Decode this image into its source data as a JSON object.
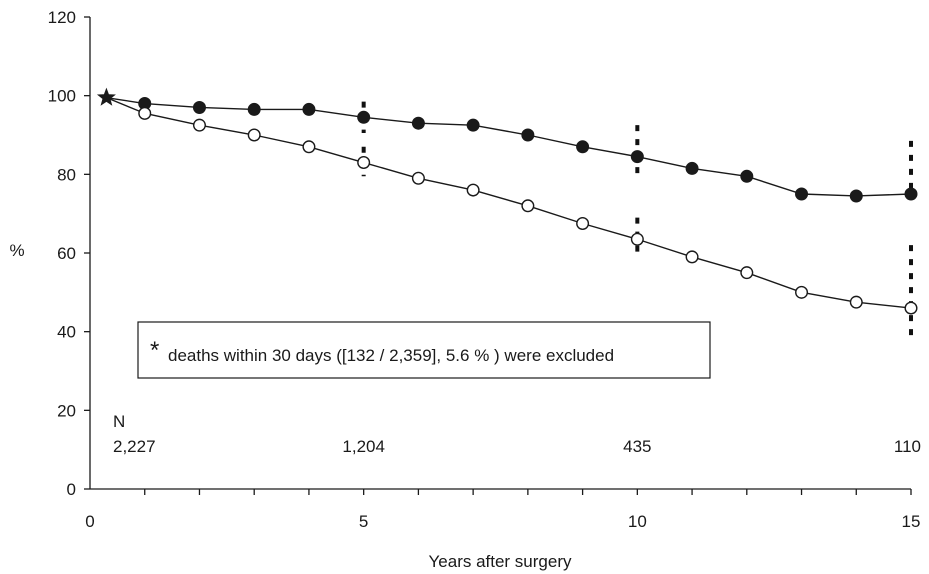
{
  "chart_data": {
    "type": "line",
    "title": "",
    "xlabel": "Years after surgery",
    "ylabel": "%",
    "xlim": [
      0,
      15
    ],
    "ylim": [
      0,
      120
    ],
    "x_ticks": [
      "0",
      "5",
      "10",
      "15"
    ],
    "y_ticks": [
      "0",
      "20",
      "40",
      "60",
      "80",
      "100",
      "120"
    ],
    "grid": false,
    "start_point": {
      "x": 0.3,
      "y": 99.5,
      "marker": "star"
    },
    "series": [
      {
        "marker": "filled-circle",
        "color": "#1a1a1a",
        "x": [
          1,
          2,
          3,
          4,
          5,
          6,
          7,
          8,
          9,
          10,
          11,
          12,
          13,
          14,
          15
        ],
        "y": [
          98,
          97,
          96.5,
          96.5,
          94.5,
          93,
          92.5,
          90,
          87,
          84.5,
          81.5,
          79.5,
          75,
          74.5,
          75
        ]
      },
      {
        "marker": "open-circle",
        "color": "#1a1a1a",
        "x": [
          1,
          2,
          3,
          4,
          5,
          6,
          7,
          8,
          9,
          10,
          11,
          12,
          13,
          14,
          15
        ],
        "y": [
          95.5,
          92.5,
          90,
          87,
          83,
          79,
          76,
          72,
          67.5,
          63.5,
          59,
          55,
          50,
          47.5,
          46
        ]
      }
    ],
    "confidence_intervals": [
      {
        "x": 5,
        "ranges": [
          [
            79.5,
            87
          ],
          [
            90.5,
            98.5
          ]
        ]
      },
      {
        "x": 10,
        "ranges": [
          [
            58.5,
            69
          ],
          [
            79.5,
            92.5
          ]
        ]
      },
      {
        "x": 15,
        "ranges": [
          [
            38,
            62
          ],
          [
            75,
            88.5
          ]
        ]
      }
    ],
    "n_title": "N",
    "n_at_risk": [
      {
        "x": 0,
        "label": "2,227"
      },
      {
        "x": 5,
        "label": "1,204"
      },
      {
        "x": 10,
        "label": "435"
      },
      {
        "x": 15,
        "label": "110"
      }
    ],
    "annotation": {
      "symbol": "*",
      "text": "deaths within 30 days ([132 / 2,359], 5.6 % ) were excluded"
    }
  }
}
